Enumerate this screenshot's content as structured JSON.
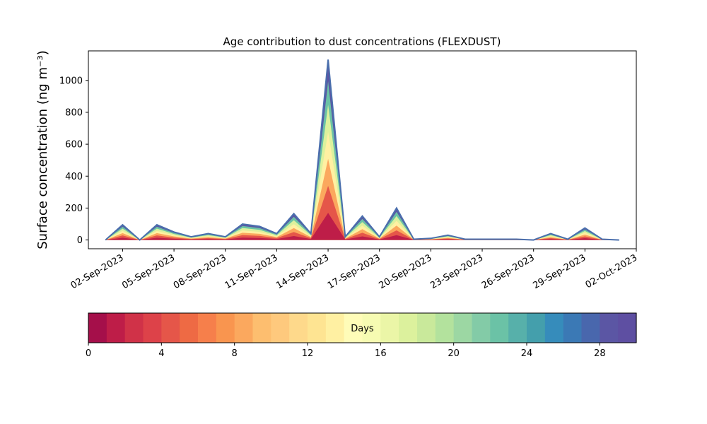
{
  "chart_data": {
    "type": "area",
    "title": "Age contribution to dust concentrations (FLEXDUST)",
    "ylabel": "Surface concentration (ng m⁻³)",
    "xlabel": "",
    "x_range": [
      "2023-08-31",
      "2023-10-02"
    ],
    "ylim": [
      -55,
      1185
    ],
    "y_ticks": [
      0,
      200,
      400,
      600,
      800,
      1000
    ],
    "x_ticks": [
      "02-Sep-2023",
      "05-Sep-2023",
      "08-Sep-2023",
      "11-Sep-2023",
      "14-Sep-2023",
      "17-Sep-2023",
      "20-Sep-2023",
      "23-Sep-2023",
      "26-Sep-2023",
      "29-Sep-2023",
      "02-Oct-2023"
    ],
    "grid": false,
    "series_note_stacking": "stacked by age bins 0-30 days",
    "total_series": {
      "x": [
        "2023-09-01",
        "2023-09-02",
        "2023-09-03",
        "2023-09-04",
        "2023-09-05",
        "2023-09-06",
        "2023-09-07",
        "2023-09-08",
        "2023-09-09",
        "2023-09-10",
        "2023-09-11",
        "2023-09-12",
        "2023-09-13",
        "2023-09-14",
        "2023-09-15",
        "2023-09-16",
        "2023-09-17",
        "2023-09-18",
        "2023-09-19",
        "2023-09-20",
        "2023-09-21",
        "2023-09-22",
        "2023-09-23",
        "2023-09-24",
        "2023-09-25",
        "2023-09-26",
        "2023-09-27",
        "2023-09-28",
        "2023-09-29",
        "2023-09-30",
        "2023-10-01"
      ],
      "values": [
        0,
        95,
        0,
        95,
        50,
        20,
        40,
        20,
        100,
        85,
        40,
        165,
        40,
        1130,
        20,
        150,
        20,
        200,
        5,
        10,
        30,
        5,
        5,
        5,
        5,
        0,
        40,
        5,
        75,
        5,
        0
      ]
    },
    "colorbar": {
      "label": "Days",
      "range": [
        0,
        30
      ],
      "ticks": [
        0,
        4,
        8,
        12,
        16,
        20,
        24,
        28
      ],
      "colors": [
        "#a50f4a",
        "#be1d48",
        "#d03248",
        "#dd4249",
        "#e55649",
        "#ee6a44",
        "#f67f4b",
        "#f9954f",
        "#fba85e",
        "#fdbe6f",
        "#fec97d",
        "#fed98b",
        "#fee492",
        "#fff0a2",
        "#fffcb8",
        "#f6fbb2",
        "#ebf6a7",
        "#dcf19d",
        "#c9e99b",
        "#b3e29d",
        "#9cd7a3",
        "#83cba7",
        "#6bc2a6",
        "#57b0aa",
        "#449fac",
        "#368cbb",
        "#3b79b5",
        "#4967ad",
        "#5b56a4",
        "#5e4fa2"
      ]
    }
  }
}
